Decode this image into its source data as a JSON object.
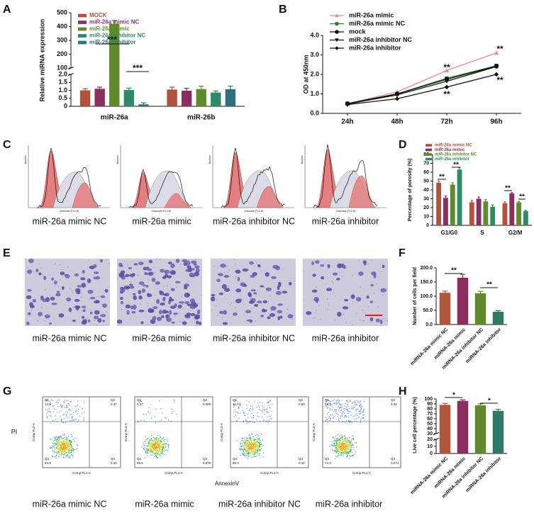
{
  "panel_labels": [
    "A",
    "B",
    "C",
    "D",
    "E",
    "F",
    "G",
    "H"
  ],
  "chart_data": [
    {
      "type": "bar",
      "y_label": "Relative miRNA expression",
      "categories": [
        "miR-26a",
        "miR-26b"
      ],
      "series": [
        {
          "name": "MOCK",
          "color": "#b4513c",
          "values": [
            1.0,
            1.05
          ],
          "errors": [
            0.1,
            0.15
          ]
        },
        {
          "name": "miR-26a mimic NC",
          "color": "#8c2f5e",
          "values": [
            1.1,
            0.98
          ],
          "errors": [
            0.1,
            0.15
          ]
        },
        {
          "name": "miR-26a mimic",
          "color": "#5f8b2c",
          "values": [
            420,
            1.08
          ],
          "errors": [
            25,
            0.18
          ]
        },
        {
          "name": "miR-26a inhibitor NC",
          "color": "#2f8a68",
          "values": [
            1.02,
            0.86
          ],
          "errors": [
            0.12,
            0.1
          ]
        },
        {
          "name": "miR-26a inhibitor",
          "color": "#2e6f82",
          "values": [
            0.12,
            1.07
          ],
          "errors": [
            0.1,
            0.2
          ]
        }
      ],
      "ylim": [
        0,
        500
      ],
      "axis_break": [
        2,
        100
      ],
      "yticks": [
        0,
        0.5,
        {
          "value": 1,
          "label": "1.0"
        },
        1.5,
        {
          "value": 2,
          "label": "2.0"
        },
        100,
        200,
        300,
        400,
        500
      ],
      "annotations": [
        "***",
        "***"
      ]
    },
    {
      "type": "line",
      "y_label": "OD at 450nm",
      "categories": [
        "24h",
        "48h",
        "72h",
        "96h"
      ],
      "series": [
        {
          "name": "miR-26a mimic",
          "color": "#e88a8a",
          "marker": "triangle",
          "values": [
            0.5,
            1.1,
            2.2,
            3.1
          ]
        },
        {
          "name": "miR-26a mimic NC",
          "color": "#2e7d32",
          "marker": "square",
          "values": [
            0.5,
            1.0,
            1.8,
            2.45
          ]
        },
        {
          "name": "mock",
          "color": "#111111",
          "marker": "circle",
          "values": [
            0.5,
            1.0,
            1.75,
            2.42
          ]
        },
        {
          "name": "miR-26a inhibitor NC",
          "color": "#111111",
          "marker": "triangle-down",
          "values": [
            0.48,
            0.95,
            1.65,
            2.4
          ]
        },
        {
          "name": "miR-26a inhibitor",
          "color": "#111111",
          "marker": "diamond",
          "values": [
            0.45,
            0.75,
            1.35,
            2.0
          ]
        }
      ],
      "ylim": [
        0,
        4
      ],
      "yticks": [
        {
          "value": 0,
          "label": "0.0"
        },
        {
          "value": 1,
          "label": "1.0"
        },
        {
          "value": 2,
          "label": "2.0"
        },
        {
          "value": 3,
          "label": "3.0"
        },
        {
          "value": 4,
          "label": "4.0"
        }
      ],
      "annotations": [
        "**",
        "**",
        "**",
        "**"
      ]
    },
    {
      "type": "bar",
      "y_label": "Percentage of porosity (%)",
      "categories": [
        "G1/G0",
        "S",
        "G2/M"
      ],
      "series": [
        {
          "name": "miR-26a mimic NC",
          "color": "#b4513c",
          "values": [
            48,
            26,
            25
          ],
          "errors": [
            2,
            2,
            1.5
          ]
        },
        {
          "name": "miR-26a mimic",
          "color": "#8c2f5e",
          "values": [
            31,
            30,
            36
          ],
          "errors": [
            2,
            2,
            1
          ]
        },
        {
          "name": "miR-26a inhibitor NC",
          "color": "#5f8b2c",
          "values": [
            46,
            27,
            26
          ],
          "errors": [
            2,
            2,
            1
          ]
        },
        {
          "name": "miR-26a inhibitor",
          "color": "#2f8a68",
          "values": [
            63,
            21,
            16
          ],
          "errors": [
            2,
            2,
            1
          ]
        }
      ],
      "ylim": [
        0,
        80
      ],
      "yticks": [
        0,
        10,
        20,
        30,
        40,
        50,
        60,
        70,
        80
      ],
      "annotations": [
        "**",
        "**",
        "**",
        "**"
      ]
    },
    {
      "type": "bar",
      "y_label": "Number of cells per field",
      "categories": [
        "miRNA-26a mimic NC",
        "miRNA-26a mimic",
        "miRNA-26a inhibitor NC",
        "miRNA-26a inhibitor"
      ],
      "values": [
        112,
        165,
        110,
        45
      ],
      "errors": [
        6,
        12,
        7,
        4
      ],
      "colors": [
        "#b0573a",
        "#8c2f5e",
        "#5f8b2c",
        "#2f7a66"
      ],
      "ylim": [
        0,
        200
      ],
      "yticks": [
        {
          "value": 0,
          "label": "0.0"
        },
        {
          "value": 50,
          "label": "50.0"
        },
        {
          "value": 100,
          "label": "100.0"
        },
        {
          "value": 150,
          "label": "150.0"
        },
        {
          "value": 200,
          "label": "200.0"
        }
      ],
      "annotations": [
        "**",
        "**"
      ]
    },
    {
      "type": "bar",
      "y_label": "Live cell percentage (%)",
      "categories": [
        "miRNA-26a mimic NC",
        "miRNA-26a mimic",
        "miRNA-26a inhibitor NC",
        "miRNA-26a inhibitor"
      ],
      "values": [
        88,
        96,
        87,
        76
      ],
      "errors": [
        3,
        2,
        3,
        3
      ],
      "colors": [
        "#b0573a",
        "#8c2f5e",
        "#5f8b2c",
        "#2f7a66"
      ],
      "ylim": [
        0,
        100
      ],
      "axis_break": [
        20,
        30
      ],
      "yticks": [
        0,
        10,
        20,
        30,
        40,
        50,
        60,
        70,
        80,
        90,
        100
      ],
      "annotations": [
        "*",
        "*"
      ]
    }
  ],
  "histograms": {
    "x_label": "Channels (FL2-H)",
    "y_label": "Number",
    "labels": [
      "miR-26a mimic NC",
      "miR-26a mimic",
      "miR-26a inhibitor NC",
      "miR-26a inhibitor"
    ]
  },
  "micrographs": {
    "labels": [
      "miR-26a mimic NC",
      "miR-26a mimic",
      "miR-26a inhibitor NC",
      "miR-26a inhibitor"
    ]
  },
  "flow_plots": {
    "x_label": "AnnexinV",
    "y_label": "PI",
    "axis_x": "Comp-FL1-A",
    "axis_y": "Comp-FL3-A",
    "quadrants": [
      "Q1",
      "Q2",
      "Q3",
      "Q4"
    ],
    "plots": [
      {
        "label": "miR-26a mimic NC",
        "values": [
          "14.6",
          "0.37",
          "0.20",
          "84.9"
        ]
      },
      {
        "label": "miR-26a mimic",
        "values": [
          "4.37",
          "0.080",
          "0.070",
          "95.5"
        ]
      },
      {
        "label": "miR-26a inhibitor NC",
        "values": [
          "14.0",
          "0.50",
          "0.22",
          "85.3"
        ]
      },
      {
        "label": "miR-26a inhibitor",
        "values": [
          "25.3",
          "0.32",
          "0.074",
          "74.3"
        ]
      }
    ]
  }
}
